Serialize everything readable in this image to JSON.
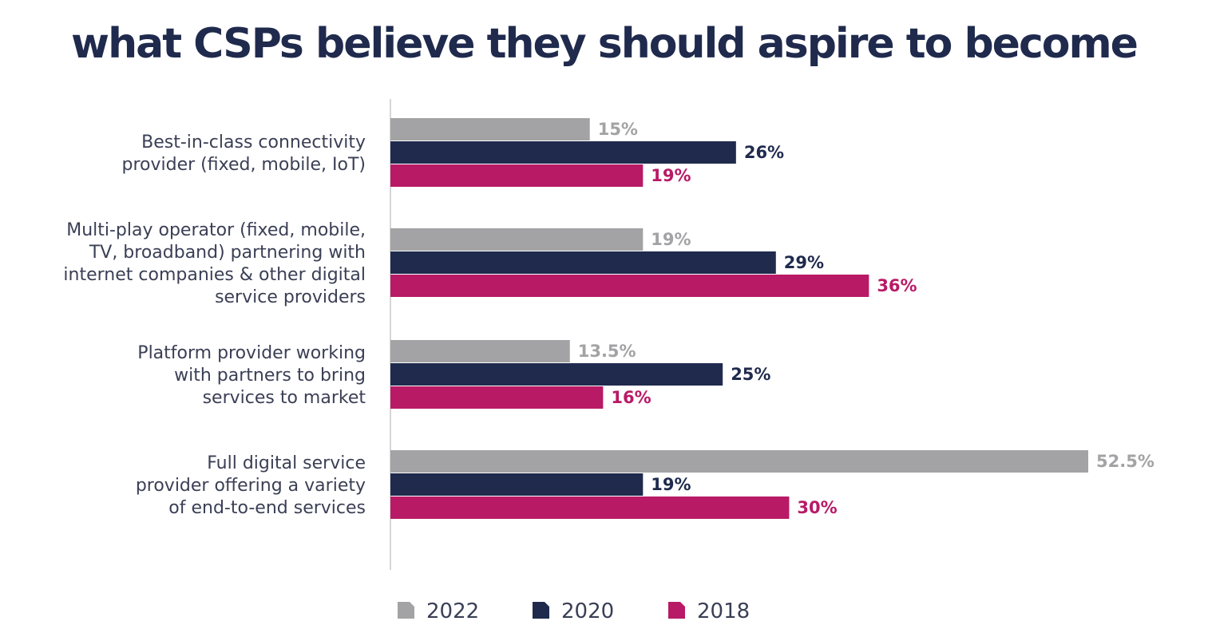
{
  "chart_data": {
    "type": "bar",
    "orientation": "horizontal",
    "title": "what CSPs believe they should aspire to become",
    "categories": [
      [
        "Best-in-class connectivity",
        "provider (fixed, mobile, IoT)"
      ],
      [
        "Multi-play operator (fixed, mobile,",
        "TV, broadband) partnering with",
        "internet companies & other digital",
        "service providers"
      ],
      [
        "Platform provider working",
        "with partners to bring",
        "services to market"
      ],
      [
        "Full digital service",
        "provider offering a variety",
        "of end-to-end services"
      ]
    ],
    "series": [
      {
        "name": "2022",
        "color": "#a3a3a5",
        "values": [
          15,
          19,
          13.5,
          52.5
        ],
        "labels": [
          "15%",
          "19%",
          "13.5%",
          "52.5%"
        ]
      },
      {
        "name": "2020",
        "color": "#1f2a4d",
        "values": [
          26,
          29,
          25,
          19
        ],
        "labels": [
          "26%",
          "29%",
          "25%",
          "19%"
        ]
      },
      {
        "name": "2018",
        "color": "#b81a66",
        "values": [
          19,
          36,
          16,
          30
        ],
        "labels": [
          "19%",
          "36%",
          "16%",
          "30%"
        ]
      }
    ],
    "xlim": [
      0,
      52.5
    ],
    "grid": false,
    "legend_position": "bottom"
  }
}
